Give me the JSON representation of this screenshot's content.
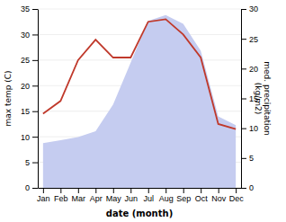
{
  "chart_data": {
    "type": "line",
    "categories": [
      "Jan",
      "Feb",
      "Mar",
      "Apr",
      "May",
      "Jun",
      "Jul",
      "Aug",
      "Sep",
      "Oct",
      "Nov",
      "Dec"
    ],
    "series": [
      {
        "type": "area",
        "axis": "y2",
        "color": "#c5ccf0",
        "values": [
          7.5,
          8.0,
          8.5,
          9.5,
          14.0,
          21.0,
          28.0,
          29.0,
          27.5,
          23.0,
          12.0,
          10.5
        ]
      },
      {
        "type": "line",
        "color": "#c0392b",
        "values": [
          14.5,
          17.0,
          25.0,
          29.0,
          25.5,
          25.5,
          32.5,
          33.0,
          30.0,
          25.5,
          12.5,
          11.5
        ]
      }
    ],
    "xlabel": "date (month)",
    "ylabel": "max temp (C)",
    "y2label": "med. precipitation\n(kg/m2)",
    "ylim": [
      0,
      35
    ],
    "yticks": [
      0,
      5,
      10,
      15,
      20,
      25,
      30,
      35
    ],
    "y2lim": [
      0,
      30
    ],
    "y2ticks": [
      0,
      5,
      10,
      15,
      20,
      25,
      30
    ],
    "grid": true
  }
}
